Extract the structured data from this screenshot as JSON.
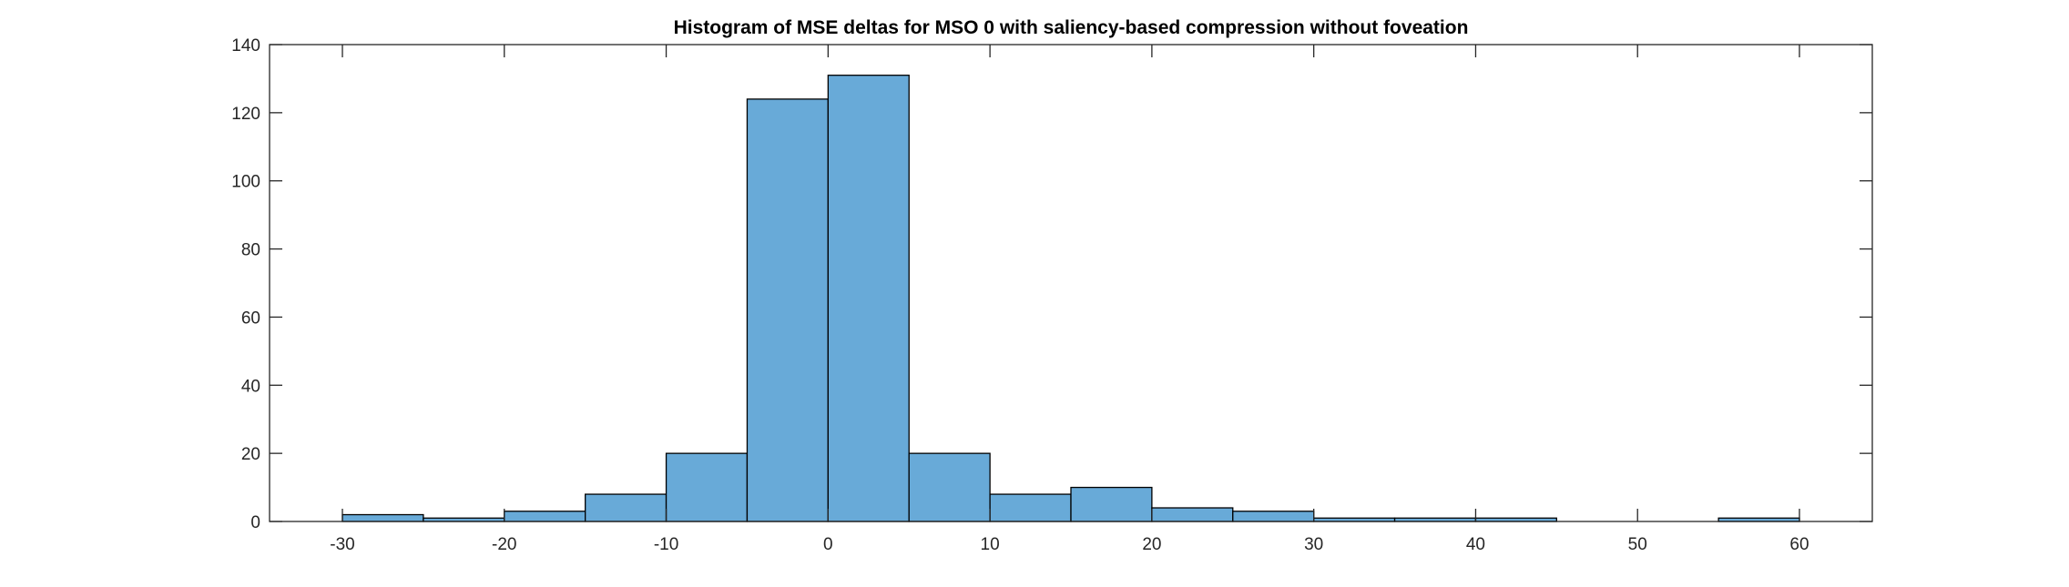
{
  "chart_data": {
    "type": "bar",
    "subtype": "histogram",
    "title": "Histogram of MSE deltas for MSO 0 with saliency-based compression without foveation",
    "xlabel": "",
    "ylabel": "",
    "bin_width": 5,
    "bin_edges": [
      -30,
      -25,
      -20,
      -15,
      -10,
      -5,
      0,
      5,
      10,
      15,
      20,
      25,
      30,
      35,
      40,
      45,
      50,
      55,
      60
    ],
    "values": [
      2,
      1,
      3,
      8,
      20,
      124,
      131,
      20,
      8,
      10,
      4,
      3,
      1,
      1,
      1,
      0,
      0,
      1
    ],
    "xlim": [
      -34.5,
      64.5
    ],
    "ylim": [
      0,
      140
    ],
    "x_ticks": [
      -30,
      -20,
      -10,
      0,
      10,
      20,
      30,
      40,
      50,
      60
    ],
    "x_tick_labels": [
      "-30",
      "-20",
      "-10",
      "0",
      "10",
      "20",
      "30",
      "40",
      "50",
      "60"
    ],
    "y_ticks": [
      0,
      20,
      40,
      60,
      80,
      100,
      120,
      140
    ],
    "y_tick_labels": [
      "0",
      "20",
      "40",
      "60",
      "80",
      "100",
      "120",
      "140"
    ],
    "grid": false,
    "legend": "none",
    "bar_color": "#68aad8",
    "edge_color": "#000000"
  }
}
